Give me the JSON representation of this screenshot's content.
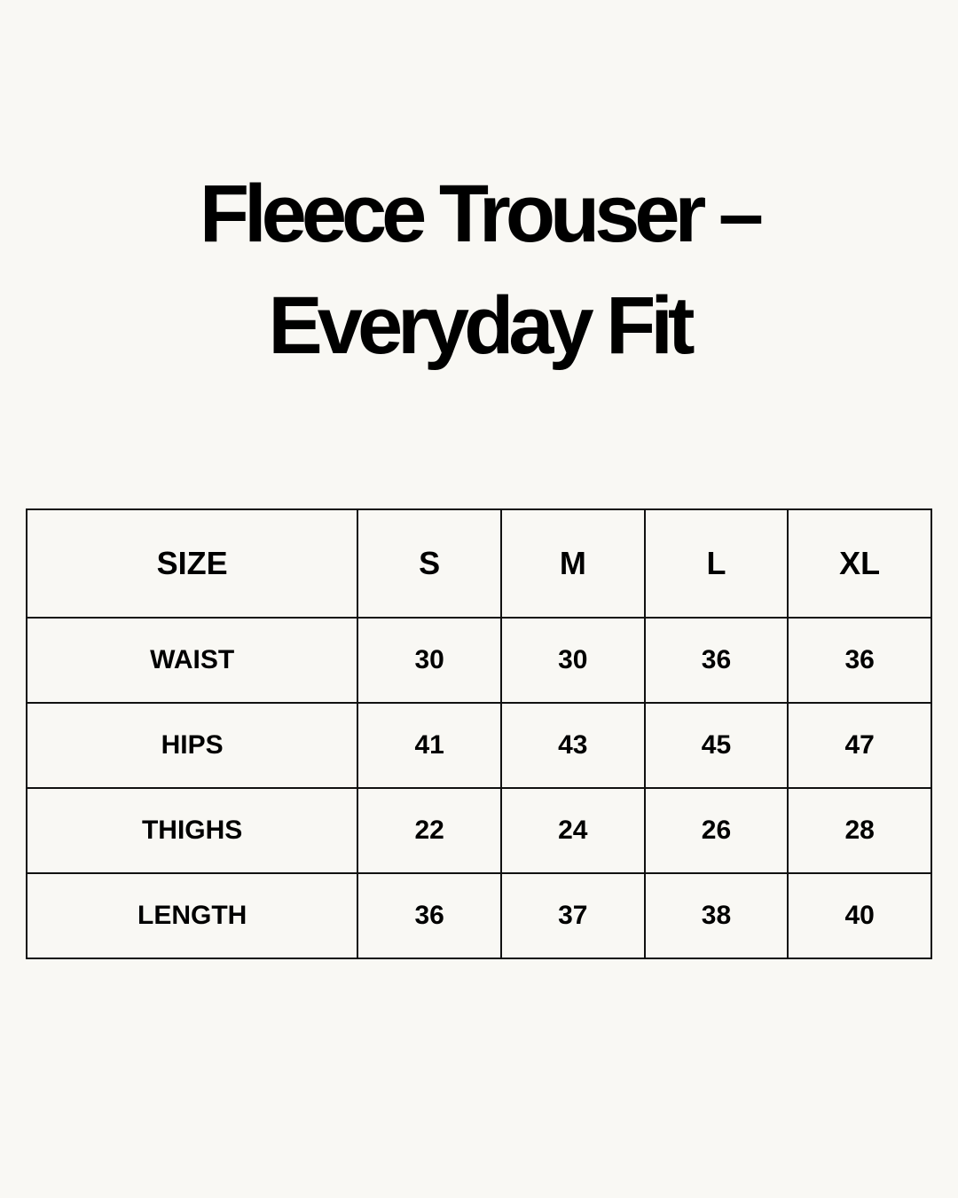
{
  "title": {
    "line1": "Fleece Trouser –",
    "line2": "Everyday Fit"
  },
  "table": {
    "headers": [
      "SIZE",
      "S",
      "M",
      "L",
      "XL"
    ],
    "rows": [
      [
        "WAIST",
        "30",
        "30",
        "36",
        "36"
      ],
      [
        "HIPS",
        "41",
        "43",
        "45",
        "47"
      ],
      [
        "THIGHS",
        "22",
        "24",
        "26",
        "28"
      ],
      [
        "LENGTH",
        "36",
        "37",
        "38",
        "40"
      ]
    ]
  },
  "colors": {
    "background": "#f9f8f4",
    "text": "#000000",
    "border": "#111111"
  }
}
